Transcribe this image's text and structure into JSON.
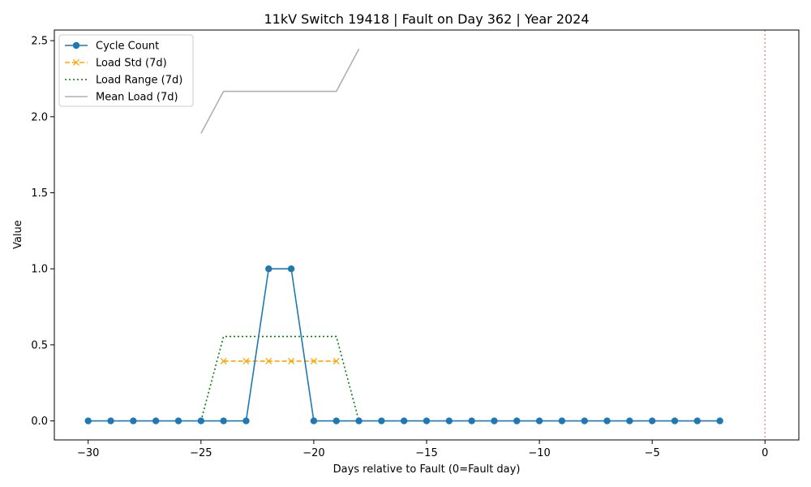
{
  "chart_data": {
    "type": "line",
    "title": "11kV Switch 19418 | Fault on Day 362 | Year 2024",
    "xlabel": "Days relative to Fault (0=Fault day)",
    "ylabel": "Value",
    "xlim": [
      -31.5,
      1.5
    ],
    "ylim": [
      -0.125,
      2.57
    ],
    "xticks": [
      -30,
      -25,
      -20,
      -15,
      -10,
      -5,
      0
    ],
    "xtick_labels": [
      "−30",
      "−25",
      "−20",
      "−15",
      "−10",
      "−5",
      "0"
    ],
    "yticks": [
      0.0,
      0.5,
      1.0,
      1.5,
      2.0,
      2.5
    ],
    "ytick_labels": [
      "0.0",
      "0.5",
      "1.0",
      "1.5",
      "2.0",
      "2.5"
    ],
    "grid": false,
    "legend_position": "top-left",
    "fault_marker": {
      "x": 0,
      "color": "#f08080",
      "style": "dotted"
    },
    "series": [
      {
        "name": "Cycle Count",
        "color": "#1f77b4",
        "style": "solid",
        "marker": "circle",
        "x": [
          -30,
          -29,
          -28,
          -27,
          -26,
          -25,
          -24,
          -23,
          -22,
          -21,
          -20,
          -19,
          -18,
          -17,
          -16,
          -15,
          -14,
          -13,
          -12,
          -11,
          -10,
          -9,
          -8,
          -7,
          -6,
          -5,
          -4,
          -3,
          -2
        ],
        "y": [
          0,
          0,
          0,
          0,
          0,
          0,
          0,
          0,
          1,
          1,
          0,
          0,
          0,
          0,
          0,
          0,
          0,
          0,
          0,
          0,
          0,
          0,
          0,
          0,
          0,
          0,
          0,
          0,
          0
        ]
      },
      {
        "name": "Load Std (7d)",
        "color": "#ffa500",
        "style": "dashed",
        "marker": "x",
        "x": [
          -24,
          -23,
          -22,
          -21,
          -20,
          -19
        ],
        "y": [
          0.393,
          0.393,
          0.393,
          0.393,
          0.393,
          0.393
        ]
      },
      {
        "name": "Load Range (7d)",
        "color": "#008000",
        "style": "dotted",
        "marker": "none",
        "x": [
          -25,
          -24,
          -23,
          -22,
          -21,
          -20,
          -19,
          -18
        ],
        "y": [
          0,
          0.555,
          0.555,
          0.555,
          0.555,
          0.555,
          0.555,
          0
        ]
      },
      {
        "name": "Mean Load (7d)",
        "color": "#b0b0b0",
        "style": "solid",
        "marker": "none",
        "x": [
          -25,
          -24,
          -23,
          -22,
          -21,
          -20,
          -19,
          -18
        ],
        "y": [
          1.89,
          2.167,
          2.167,
          2.167,
          2.167,
          2.167,
          2.167,
          2.445
        ]
      }
    ]
  }
}
